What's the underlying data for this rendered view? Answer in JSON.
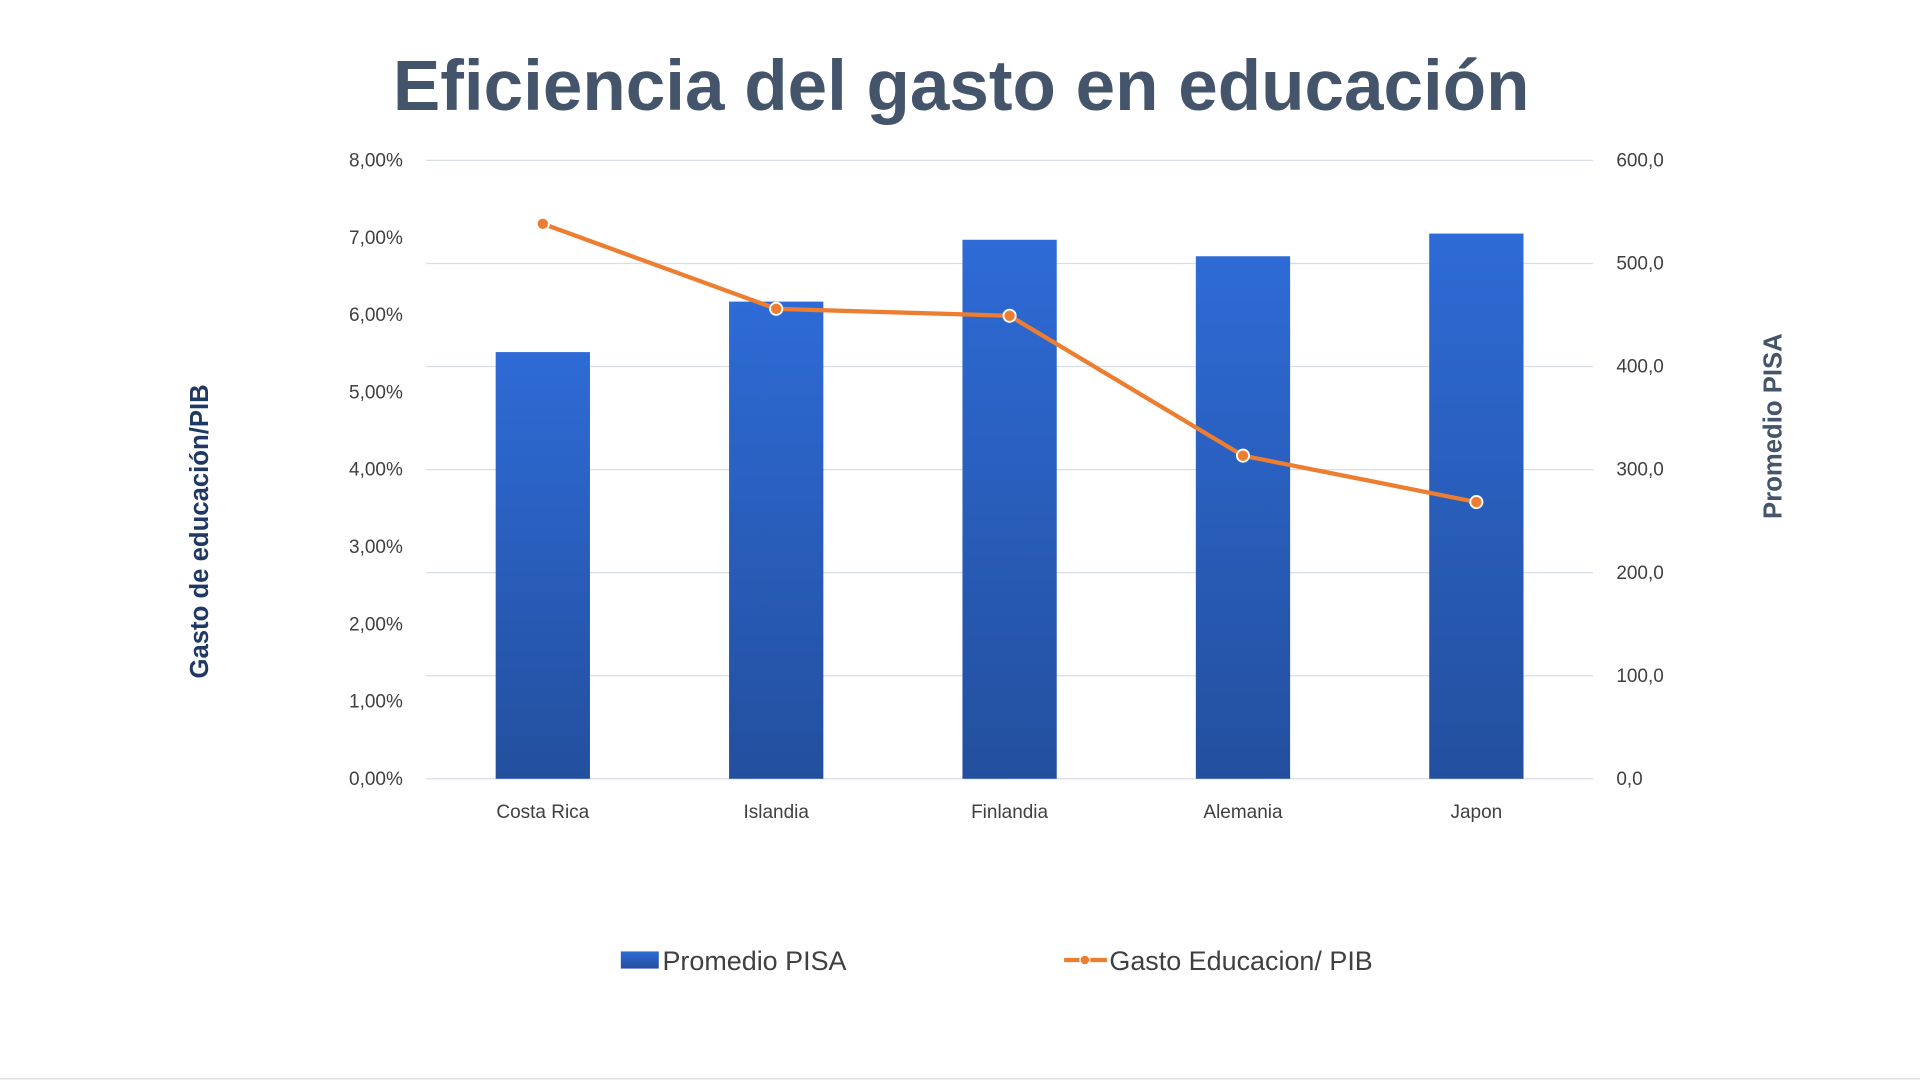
{
  "chart_data": {
    "type": "bar+line",
    "title": "Eficiencia del gasto en educación",
    "categories": [
      "Costa Rica",
      "Islandia",
      "Finlandia",
      "Alemania",
      "Japon"
    ],
    "series": [
      {
        "name": "Promedio PISA",
        "type": "bar",
        "axis": "right",
        "values": [
          414,
          463,
          523,
          507,
          529
        ],
        "color": "#2e69d1"
      },
      {
        "name": "Gasto Educacion/ PIB",
        "type": "line",
        "axis": "left",
        "values": [
          7.18,
          6.08,
          5.99,
          4.18,
          3.58
        ],
        "color": "#ed7d31"
      }
    ],
    "y_left": {
      "label": "Gasto de educación/PIB",
      "ylim": [
        0,
        8
      ],
      "ticks": [
        "0,00%",
        "1,00%",
        "2,00%",
        "3,00%",
        "4,00%",
        "5,00%",
        "6,00%",
        "7,00%",
        "8,00%"
      ]
    },
    "y_right": {
      "label": "Promedio PISA",
      "ylim": [
        0,
        600
      ],
      "ticks": [
        "0,0",
        "100,0",
        "200,0",
        "300,0",
        "400,0",
        "500,0",
        "600,0"
      ]
    },
    "grid": true,
    "legend": "bottom"
  }
}
